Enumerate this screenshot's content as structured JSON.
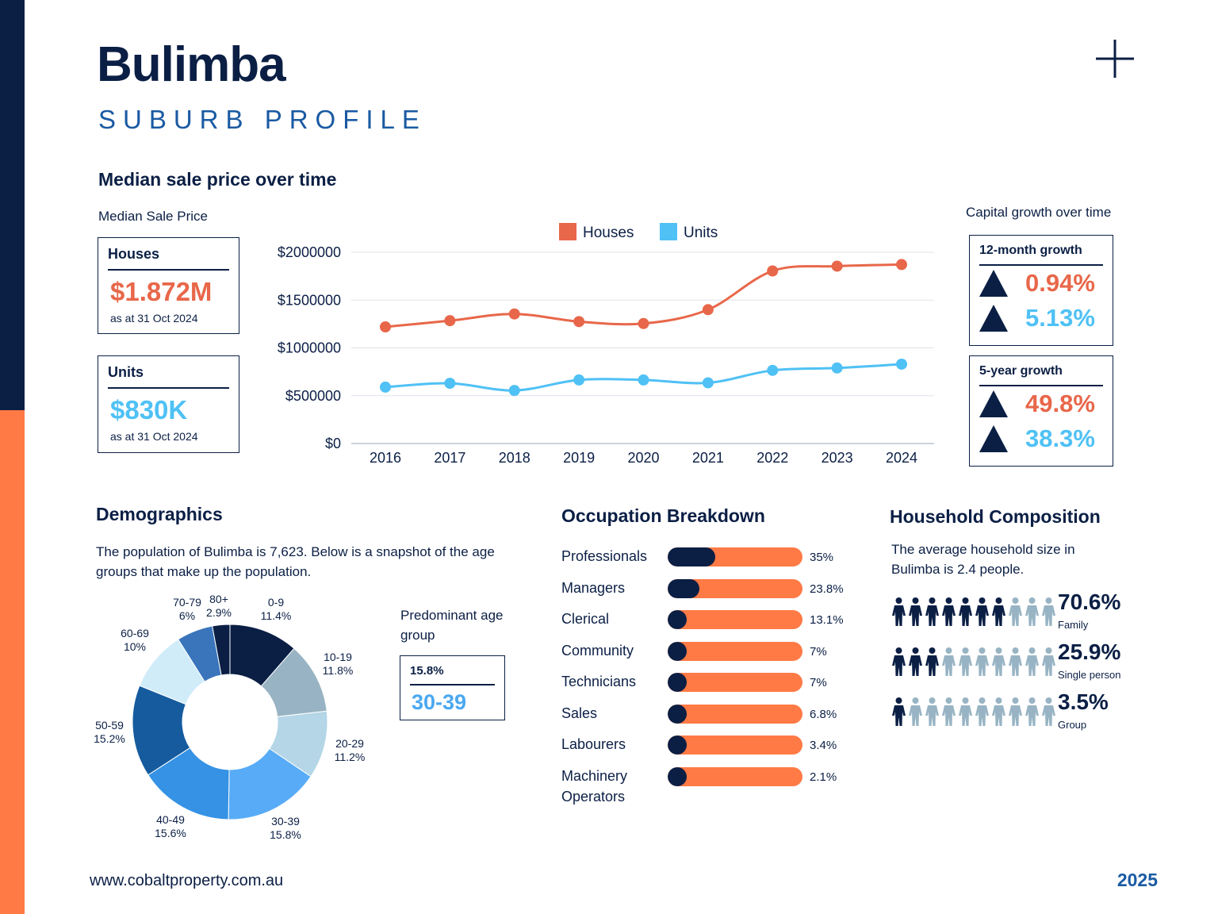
{
  "header": {
    "title": "Bulimba",
    "subtitle": "SUBURB PROFILE"
  },
  "price_section": {
    "heading": "Median sale price over time",
    "sub": "Median Sale Price",
    "houses": {
      "label": "Houses",
      "value": "$1.872M",
      "asof": "as at 31 Oct 2024"
    },
    "units": {
      "label": "Units",
      "value": "$830K",
      "asof": "as at 31 Oct 2024"
    }
  },
  "growth": {
    "heading": "Capital growth over time",
    "twelve_month": {
      "label": "12-month growth",
      "houses": "0.94%",
      "units": "5.13%"
    },
    "five_year": {
      "label": "5-year growth",
      "houses": "49.8%",
      "units": "38.3%"
    }
  },
  "colors": {
    "houses": "#e8674a",
    "units": "#4fc1f5",
    "navy": "#0b1f45",
    "orange": "#ff7a45",
    "blue": "#1a5aa3"
  },
  "chart_data": [
    {
      "type": "line",
      "title": "",
      "x": [
        "2016",
        "2017",
        "2018",
        "2019",
        "2020",
        "2021",
        "2022",
        "2023",
        "2024"
      ],
      "ylim": [
        0,
        2000000
      ],
      "yticks": [
        "$0",
        "$500000",
        "$1000000",
        "$1500000",
        "$2000000"
      ],
      "legend": "top",
      "grid": true,
      "series": [
        {
          "name": "Houses",
          "color": "#e8674a",
          "values": [
            1220000,
            1285000,
            1355000,
            1275000,
            1255000,
            1400000,
            1805000,
            1855000,
            1872000
          ]
        },
        {
          "name": "Units",
          "color": "#4fc1f5",
          "values": [
            590000,
            630000,
            555000,
            665000,
            665000,
            635000,
            765000,
            790000,
            830000
          ]
        }
      ]
    },
    {
      "type": "pie",
      "title": "",
      "donut": true,
      "categories": [
        "0-9",
        "10-19",
        "20-29",
        "30-39",
        "40-49",
        "50-59",
        "60-69",
        "70-79",
        "80+"
      ],
      "values": [
        11.4,
        11.8,
        11.2,
        15.8,
        15.6,
        15.2,
        10,
        6,
        2.9
      ],
      "value_labels": [
        "11.4%",
        "11.8%",
        "11.2%",
        "15.8%",
        "15.6%",
        "15.2%",
        "10%",
        "6%",
        "2.9%"
      ],
      "colors": [
        "#0b1f45",
        "#98b4c4",
        "#b4d6e6",
        "#58abf7",
        "#3592e4",
        "#155b9e",
        "#d1ecf9",
        "#3a75bb",
        "#0b1f45"
      ]
    },
    {
      "type": "bar",
      "title": "",
      "categories": [
        "Professionals",
        "Managers",
        "Clerical",
        "Community",
        "Technicians",
        "Sales",
        "Labourers",
        "Machinery Operators"
      ],
      "values": [
        35,
        23.8,
        13.1,
        7,
        7,
        6.8,
        3.4,
        2.1
      ],
      "value_labels": [
        "35%",
        "23.8%",
        "13.1%",
        "7%",
        "7%",
        "6.8%",
        "3.4%",
        "2.1%"
      ]
    }
  ],
  "demographics": {
    "heading": "Demographics",
    "text": "The population of Bulimba is 7,623. Below is a snapshot of the age groups that make up the population.",
    "predominant_label": "Predominant age group",
    "predominant_pct": "15.8%",
    "predominant_group": "30-39"
  },
  "occupation": {
    "heading": "Occupation Breakdown"
  },
  "household": {
    "heading": "Household Composition",
    "text": "The average household size in Bulimba is 2.4 people.",
    "rows": [
      {
        "value": "70.6%",
        "label": "Family",
        "filled": 7,
        "total": 10
      },
      {
        "value": "25.9%",
        "label": "Single person",
        "filled": 3,
        "total": 10
      },
      {
        "value": "3.5%",
        "label": "Group",
        "filled": 1,
        "total": 10
      }
    ],
    "icon": "person-icon"
  },
  "footer": {
    "url": "www.cobaltproperty.com.au",
    "year": "2025"
  }
}
